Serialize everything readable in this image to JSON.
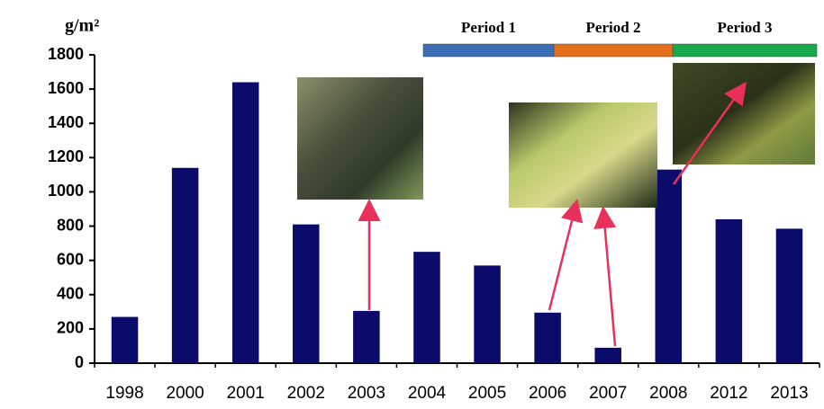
{
  "chart_data": {
    "type": "bar",
    "y_label": "g/m²",
    "categories": [
      "1998",
      "2000",
      "2001",
      "2002",
      "2003",
      "2004",
      "2005",
      "2006",
      "2007",
      "2008",
      "2012",
      "2013"
    ],
    "values": [
      270,
      1140,
      1640,
      810,
      305,
      650,
      570,
      295,
      90,
      1130,
      840,
      785
    ],
    "color": "#0b0b6b",
    "ylim": [
      0,
      1800
    ],
    "yticks": [
      0,
      200,
      400,
      600,
      800,
      1000,
      1200,
      1400,
      1600,
      1800
    ],
    "grid": false,
    "periods": [
      {
        "label": "Period 1",
        "color": "#3d6db5"
      },
      {
        "label": "Period 2",
        "color": "#e4701e"
      },
      {
        "label": "Period 3",
        "color": "#16a84a"
      }
    ]
  }
}
